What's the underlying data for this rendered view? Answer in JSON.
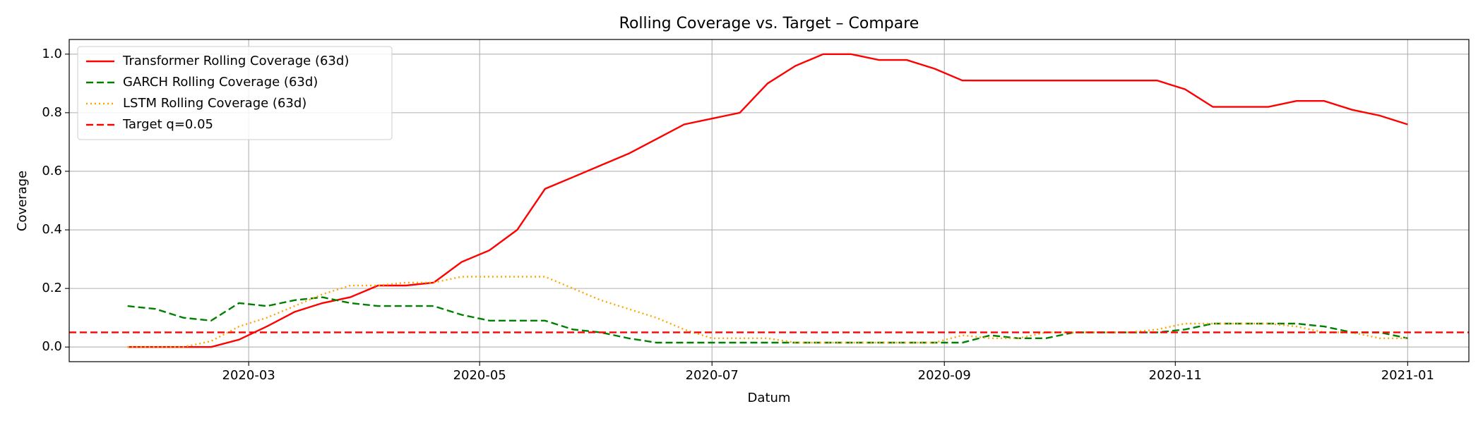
{
  "chart_data": {
    "type": "line",
    "title": "Rolling Coverage vs. Target – Compare",
    "xlabel": "Datum",
    "ylabel": "Coverage",
    "x": [
      2020.08,
      2020.1,
      2020.12,
      2020.14,
      2020.16,
      2020.18,
      2020.2,
      2020.22,
      2020.24,
      2020.26,
      2020.28,
      2020.3,
      2020.32,
      2020.34,
      2020.36,
      2020.38,
      2020.4,
      2020.42,
      2020.44,
      2020.46,
      2020.48,
      2020.5,
      2020.52,
      2020.54,
      2020.56,
      2020.58,
      2020.6,
      2020.62,
      2020.64,
      2020.66,
      2020.68,
      2020.7,
      2020.72,
      2020.74,
      2020.76,
      2020.78,
      2020.8,
      2020.82,
      2020.84,
      2020.86,
      2020.88,
      2020.9,
      2020.92,
      2020.94,
      2020.96,
      2020.98,
      2021.0
    ],
    "series": [
      {
        "name": "Transformer Rolling Coverage (63d)",
        "color": "#ff0000",
        "linestyle": "solid",
        "values": [
          0,
          0,
          0,
          0,
          0.025,
          0.07,
          0.12,
          0.15,
          0.17,
          0.21,
          0.21,
          0.22,
          0.29,
          0.33,
          0.4,
          0.54,
          0.58,
          0.62,
          0.66,
          0.71,
          0.76,
          0.78,
          0.8,
          0.9,
          0.96,
          1.0,
          1.0,
          0.98,
          0.98,
          0.95,
          0.91,
          0.91,
          0.91,
          0.91,
          0.91,
          0.91,
          0.91,
          0.91,
          0.88,
          0.82,
          0.82,
          0.82,
          0.84,
          0.84,
          0.81,
          0.79,
          0.76
        ]
      },
      {
        "name": "GARCH Rolling Coverage (63d)",
        "color": "#008000",
        "linestyle": "dashed",
        "values": [
          0.14,
          0.13,
          0.1,
          0.09,
          0.15,
          0.14,
          0.16,
          0.17,
          0.15,
          0.14,
          0.14,
          0.14,
          0.11,
          0.09,
          0.09,
          0.09,
          0.06,
          0.05,
          0.03,
          0.015,
          0.015,
          0.015,
          0.015,
          0.015,
          0.015,
          0.015,
          0.015,
          0.015,
          0.015,
          0.015,
          0.015,
          0.04,
          0.03,
          0.03,
          0.05,
          0.05,
          0.05,
          0.05,
          0.06,
          0.08,
          0.08,
          0.08,
          0.08,
          0.07,
          0.05,
          0.05,
          0.03
        ]
      },
      {
        "name": "LSTM Rolling Coverage (63d)",
        "color": "#ffa500",
        "linestyle": "dotted",
        "values": [
          0,
          0,
          0,
          0.02,
          0.07,
          0.1,
          0.14,
          0.18,
          0.21,
          0.21,
          0.22,
          0.22,
          0.24,
          0.24,
          0.24,
          0.24,
          0.2,
          0.16,
          0.13,
          0.1,
          0.06,
          0.03,
          0.03,
          0.03,
          0.015,
          0.015,
          0.015,
          0.015,
          0.015,
          0.015,
          0.04,
          0.03,
          0.03,
          0.05,
          0.05,
          0.05,
          0.05,
          0.06,
          0.08,
          0.08,
          0.08,
          0.08,
          0.07,
          0.05,
          0.05,
          0.03,
          0.03
        ]
      }
    ],
    "hlines": [
      {
        "name": "Target q=0.05",
        "value": 0.05,
        "color": "#ff0000",
        "linestyle": "dashed"
      }
    ],
    "xlim": [
      2020.038,
      2021.044
    ],
    "xticks": [
      {
        "value": 2020.167,
        "label": "2020-03"
      },
      {
        "value": 2020.333,
        "label": "2020-05"
      },
      {
        "value": 2020.5,
        "label": "2020-07"
      },
      {
        "value": 2020.667,
        "label": "2020-09"
      },
      {
        "value": 2020.833,
        "label": "2020-11"
      },
      {
        "value": 2021.0,
        "label": "2021-01"
      }
    ],
    "ylim": [
      -0.05,
      1.05
    ],
    "yticks": [
      {
        "value": 0,
        "label": "0.0"
      },
      {
        "value": 0.2,
        "label": "0.2"
      },
      {
        "value": 0.4,
        "label": "0.4"
      },
      {
        "value": 0.6,
        "label": "0.6"
      },
      {
        "value": 0.8,
        "label": "0.8"
      },
      {
        "value": 1,
        "label": "1.0"
      }
    ],
    "grid": true,
    "legend": "upper left"
  }
}
